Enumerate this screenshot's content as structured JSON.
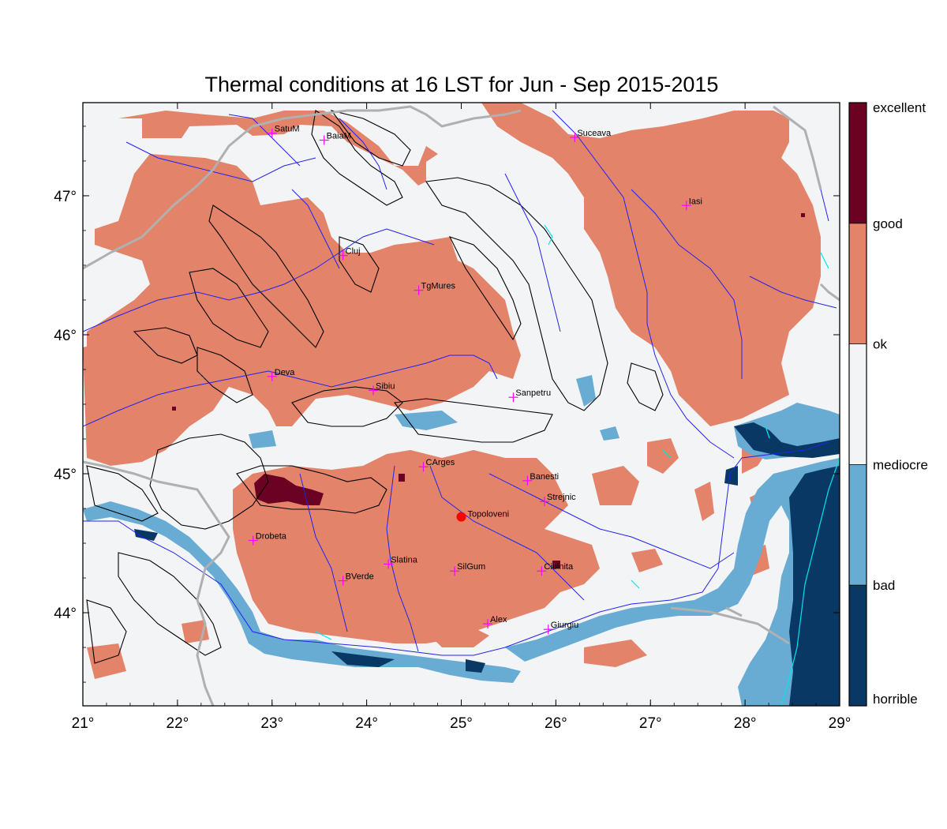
{
  "title": "Thermal conditions at 16 LST for Jun - Sep  2015-2015",
  "map": {
    "lon_range": [
      21,
      29
    ],
    "lat_range": [
      43.33,
      47.67
    ],
    "x_ticks": [
      {
        "value": 21,
        "label": "21°"
      },
      {
        "value": 22,
        "label": "22°"
      },
      {
        "value": 23,
        "label": "23°"
      },
      {
        "value": 24,
        "label": "24°"
      },
      {
        "value": 25,
        "label": "25°"
      },
      {
        "value": 26,
        "label": "26°"
      },
      {
        "value": 27,
        "label": "27°"
      },
      {
        "value": 28,
        "label": "28°"
      },
      {
        "value": 29,
        "label": "29°"
      }
    ],
    "y_ticks": [
      {
        "value": 44,
        "label": "44°"
      },
      {
        "value": 45,
        "label": "45°"
      },
      {
        "value": 46,
        "label": "46°"
      },
      {
        "value": 47,
        "label": "47°"
      }
    ],
    "cities": [
      {
        "name": "SatuM",
        "lon": 23.0,
        "lat": 47.45
      },
      {
        "name": "BaiaM",
        "lon": 23.55,
        "lat": 47.4
      },
      {
        "name": "Suceava",
        "lon": 26.2,
        "lat": 47.42
      },
      {
        "name": "Iasi",
        "lon": 27.38,
        "lat": 46.93
      },
      {
        "name": "Cluj",
        "lon": 23.75,
        "lat": 46.57
      },
      {
        "name": "TgMures",
        "lon": 24.55,
        "lat": 46.32
      },
      {
        "name": "Deva",
        "lon": 23.0,
        "lat": 45.7
      },
      {
        "name": "Sibiu",
        "lon": 24.07,
        "lat": 45.6
      },
      {
        "name": "Sanpetru",
        "lon": 25.55,
        "lat": 45.55
      },
      {
        "name": "CArges",
        "lon": 24.6,
        "lat": 45.05
      },
      {
        "name": "Banesti",
        "lon": 25.7,
        "lat": 44.95
      },
      {
        "name": "Strejnic",
        "lon": 25.88,
        "lat": 44.8
      },
      {
        "name": "Drobeta",
        "lon": 22.8,
        "lat": 44.52
      },
      {
        "name": "Slatina",
        "lon": 24.23,
        "lat": 44.35
      },
      {
        "name": "SilGum",
        "lon": 24.93,
        "lat": 44.3
      },
      {
        "name": "BVerde",
        "lon": 23.75,
        "lat": 44.23
      },
      {
        "name": "Ciulnita",
        "lon": 25.85,
        "lat": 44.3
      },
      {
        "name": "Alex",
        "lon": 25.28,
        "lat": 43.92
      },
      {
        "name": "Giurgiu",
        "lon": 25.92,
        "lat": 43.88
      }
    ],
    "highlight_city": {
      "name": "Topoloveni",
      "lon": 25.0,
      "lat": 44.69
    }
  },
  "legend": {
    "colors": [
      "#0a3865",
      "#68acd3",
      "#f3f4f6",
      "#e3836a",
      "#6b0123"
    ],
    "labels": [
      "horrible",
      "bad",
      "mediocre",
      "ok",
      "good",
      "excellent"
    ]
  },
  "colors": {
    "frame": "#000000",
    "rivers": "#2222ee",
    "border": "#b0b0b0",
    "city_marker": "#ff00ff",
    "highlight": "#ff0000",
    "lakes": "#00e5ee"
  }
}
